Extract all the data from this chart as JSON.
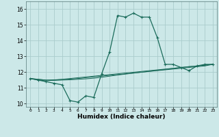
{
  "title": "",
  "xlabel": "Humidex (Indice chaleur)",
  "ylabel": "",
  "background_color": "#cce8e8",
  "grid_color": "#aacccc",
  "line_color": "#1a6b5a",
  "xlim": [
    -0.5,
    23.5
  ],
  "ylim": [
    9.8,
    16.5
  ],
  "yticks": [
    10,
    11,
    12,
    13,
    14,
    15,
    16
  ],
  "xticks": [
    0,
    1,
    2,
    3,
    4,
    5,
    6,
    7,
    8,
    9,
    10,
    11,
    12,
    13,
    14,
    15,
    16,
    17,
    18,
    19,
    20,
    21,
    22,
    23
  ],
  "series": [
    [
      11.6,
      11.5,
      11.4,
      11.3,
      11.2,
      10.2,
      10.1,
      10.5,
      10.4,
      11.9,
      13.3,
      15.6,
      15.5,
      15.75,
      15.5,
      15.5,
      14.2,
      12.5,
      12.5,
      12.3,
      12.1,
      12.4,
      12.5,
      12.5
    ],
    [
      11.6,
      11.5,
      11.45,
      11.5,
      11.55,
      11.6,
      11.65,
      11.7,
      11.75,
      11.8,
      11.85,
      11.9,
      11.95,
      12.0,
      12.05,
      12.1,
      12.15,
      12.2,
      12.25,
      12.3,
      12.35,
      12.4,
      12.45,
      12.5
    ],
    [
      11.6,
      11.55,
      11.5,
      11.52,
      11.54,
      11.56,
      11.6,
      11.65,
      11.7,
      11.75,
      11.8,
      11.85,
      11.9,
      11.95,
      12.0,
      12.05,
      12.1,
      12.15,
      12.2,
      12.25,
      12.3,
      12.35,
      12.4,
      12.5
    ],
    [
      11.6,
      11.55,
      11.5,
      11.48,
      11.5,
      11.52,
      11.55,
      11.58,
      11.62,
      11.68,
      11.75,
      11.82,
      11.88,
      11.94,
      12.0,
      12.06,
      12.12,
      12.18,
      12.24,
      12.3,
      12.36,
      12.4,
      12.45,
      12.5
    ]
  ]
}
